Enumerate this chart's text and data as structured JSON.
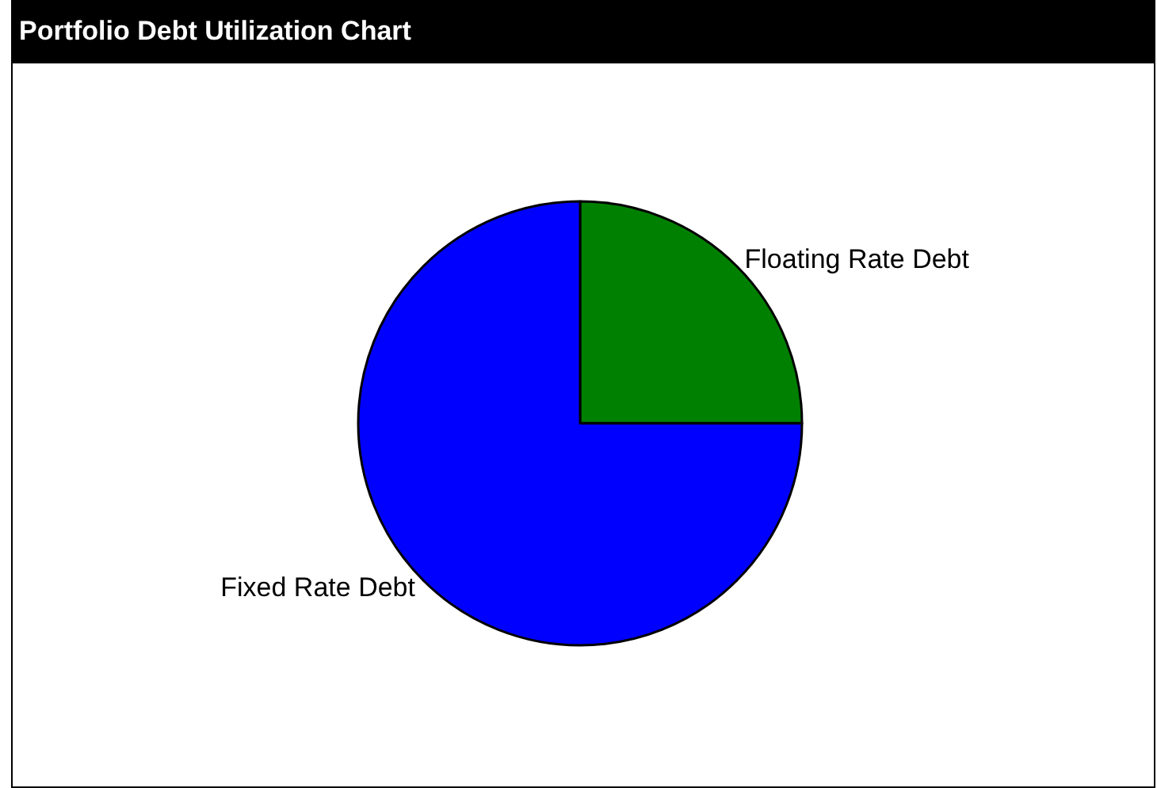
{
  "chart_data": {
    "type": "pie",
    "title": "Portfolio Debt Utilization Chart",
    "categories": [
      "Floating Rate Debt",
      "Fixed Rate Debt"
    ],
    "values": [
      25,
      75
    ],
    "colors": [
      "#008000",
      "#0000ff"
    ]
  }
}
